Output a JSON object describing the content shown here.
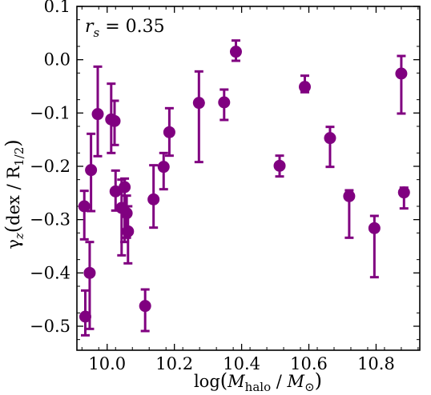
{
  "chart_data": {
    "type": "scatter",
    "annotation": "r_s = 0.35",
    "xlabel": "log(M_halo / M_⊙)",
    "ylabel": "γ_z (dex / R_1/2)",
    "xlim": [
      9.91,
      10.93
    ],
    "ylim": [
      -0.545,
      0.1
    ],
    "x_ticks": [
      10.0,
      10.2,
      10.4,
      10.6,
      10.8
    ],
    "x_tick_labels": [
      "10.0",
      "10.2",
      "10.4",
      "10.6",
      "10.8"
    ],
    "y_ticks": [
      0.1,
      0.0,
      -0.1,
      -0.2,
      -0.3,
      -0.4,
      -0.5
    ],
    "y_tick_labels": [
      "0.1",
      "0.0",
      "−0.1",
      "−0.2",
      "−0.3",
      "−0.4",
      "−0.5"
    ],
    "grid": false,
    "marker_color": "#800080",
    "points": [
      {
        "x": 9.932,
        "y": -0.275,
        "y_low": -0.337,
        "y_high": -0.246
      },
      {
        "x": 9.935,
        "y": -0.482,
        "y_low": -0.517,
        "y_high": -0.433
      },
      {
        "x": 9.948,
        "y": -0.4,
        "y_low": -0.505,
        "y_high": -0.342
      },
      {
        "x": 9.952,
        "y": -0.207,
        "y_low": -0.284,
        "y_high": -0.139
      },
      {
        "x": 9.972,
        "y": -0.102,
        "y_low": -0.181,
        "y_high": -0.013
      },
      {
        "x": 10.012,
        "y": -0.112,
        "y_low": -0.175,
        "y_high": -0.045
      },
      {
        "x": 10.022,
        "y": -0.115,
        "y_low": -0.16,
        "y_high": -0.077
      },
      {
        "x": 10.025,
        "y": -0.247,
        "y_low": -0.283,
        "y_high": -0.208
      },
      {
        "x": 10.043,
        "y": -0.278,
        "y_low": -0.367,
        "y_high": -0.225
      },
      {
        "x": 10.052,
        "y": -0.239,
        "y_low": -0.342,
        "y_high": -0.223
      },
      {
        "x": 10.058,
        "y": -0.288,
        "y_low": -0.334,
        "y_high": -0.255
      },
      {
        "x": 10.062,
        "y": -0.322,
        "y_low": -0.382,
        "y_high": -0.275
      },
      {
        "x": 10.113,
        "y": -0.462,
        "y_low": -0.509,
        "y_high": -0.431
      },
      {
        "x": 10.138,
        "y": -0.262,
        "y_low": -0.315,
        "y_high": -0.198
      },
      {
        "x": 10.168,
        "y": -0.201,
        "y_low": -0.243,
        "y_high": -0.175
      },
      {
        "x": 10.185,
        "y": -0.136,
        "y_low": -0.18,
        "y_high": -0.091
      },
      {
        "x": 10.273,
        "y": -0.081,
        "y_low": -0.192,
        "y_high": -0.022
      },
      {
        "x": 10.348,
        "y": -0.08,
        "y_low": -0.113,
        "y_high": -0.056
      },
      {
        "x": 10.383,
        "y": 0.015,
        "y_low": -0.002,
        "y_high": 0.036
      },
      {
        "x": 10.513,
        "y": -0.199,
        "y_low": -0.219,
        "y_high": -0.18
      },
      {
        "x": 10.588,
        "y": -0.051,
        "y_low": -0.061,
        "y_high": -0.03
      },
      {
        "x": 10.663,
        "y": -0.147,
        "y_low": -0.201,
        "y_high": -0.126
      },
      {
        "x": 10.72,
        "y": -0.256,
        "y_low": -0.334,
        "y_high": -0.245
      },
      {
        "x": 10.795,
        "y": -0.316,
        "y_low": -0.408,
        "y_high": -0.293
      },
      {
        "x": 10.875,
        "y": -0.026,
        "y_low": -0.101,
        "y_high": 0.007
      },
      {
        "x": 10.883,
        "y": -0.249,
        "y_low": -0.279,
        "y_high": -0.24
      }
    ]
  }
}
